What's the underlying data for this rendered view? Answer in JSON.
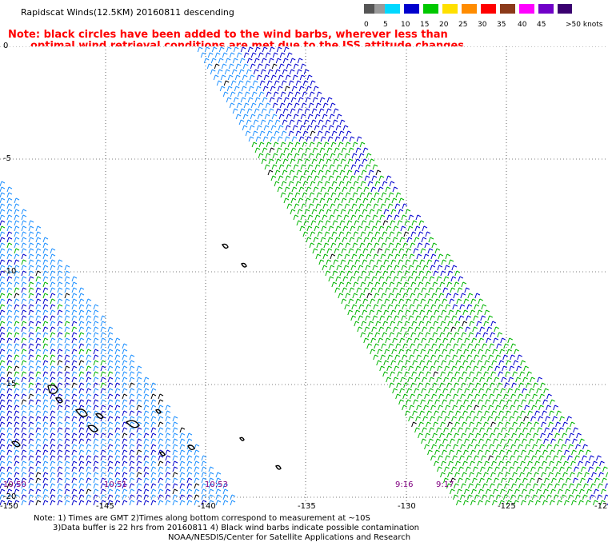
{
  "header": {
    "title": "Rapidscat Winds(12.5KM) 20160811 descending",
    "note_line1": "Note: black circles have been added to the wind barbs, wherever less than",
    "note_line2": "optimal wind retrieval conditions are met due to the ISS attitude changes."
  },
  "legend": {
    "labels": [
      "0",
      "5",
      "10",
      "15",
      "20",
      "25",
      "30",
      "35",
      "40",
      "45",
      ">50 knots"
    ],
    "colors": [
      "#555555",
      "#9a9a9a",
      "#00d8ff",
      "#0000cd",
      "#00c800",
      "#ffe000",
      "#ff8c00",
      "#ff0000",
      "#8b3a1a",
      "#ff00ff",
      "#7000c8",
      "#3a0070"
    ]
  },
  "axes": {
    "lat_labels": [
      "0",
      "-5",
      "-10",
      "-15",
      "-20"
    ],
    "lon_labels": [
      "-150",
      "-145",
      "-140",
      "-135",
      "-130",
      "-125",
      "-12"
    ]
  },
  "times": [
    "10:50",
    "10:51",
    "10:53",
    "9:16",
    "9:17"
  ],
  "footer": {
    "line1": "Note: 1) Times are GMT 2)Times along bottom correspond to measurement at ~10S",
    "line2": "3)Data buffer is 22 hrs from 20160811 4) Black wind barbs indicate possible contamination",
    "line3": "NOAA/NESDIS/Center for Satellite Applications and Research"
  },
  "colors": {
    "note": "#ff0000",
    "time_label": "#800080",
    "barb_blue": "#0000cd",
    "barb_lightblue": "#1e90ff",
    "barb_green": "#00b400",
    "barb_yellow": "#ffe000",
    "barb_black": "#000000"
  }
}
